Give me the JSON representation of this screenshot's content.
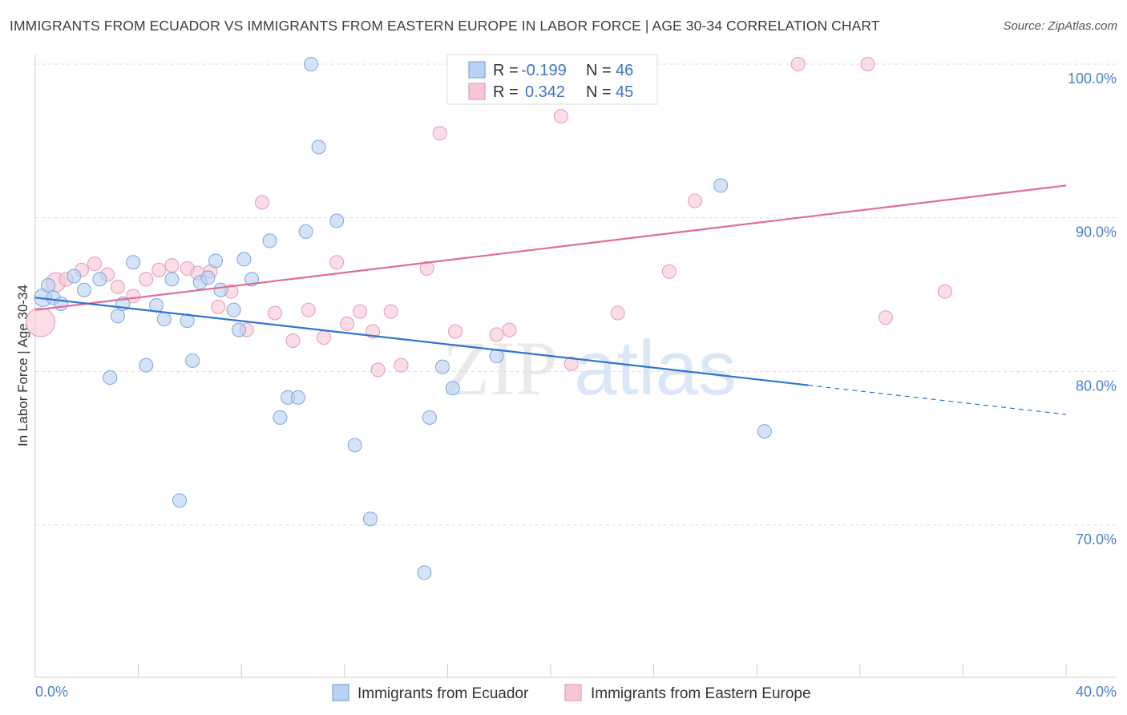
{
  "title": "IMMIGRANTS FROM ECUADOR VS IMMIGRANTS FROM EASTERN EUROPE IN LABOR FORCE | AGE 30-34 CORRELATION CHART",
  "source": "Source: ZipAtlas.com",
  "watermark": {
    "zip": "ZIP",
    "atlas": "atlas"
  },
  "colors": {
    "blue_fill": "#b9d1f2",
    "blue_stroke": "#7aa6e0",
    "blue_line": "#2f74d0",
    "pink_fill": "#f7c6d4",
    "pink_stroke": "#e79ab1",
    "pink_line": "#e06c96",
    "grid": "#dddddd",
    "tick_text": "#4a7fcf"
  },
  "legend": {
    "rows": [
      {
        "r_label": "R =",
        "r_value": "-0.199",
        "n_label": "N =",
        "n_value": "46"
      },
      {
        "r_label": "R =",
        "r_value": "0.342",
        "n_label": "N =",
        "n_value": "45"
      }
    ]
  },
  "chart_data": {
    "type": "scatter",
    "title": "IMMIGRANTS FROM ECUADOR VS IMMIGRANTS FROM EASTERN EUROPE IN LABOR FORCE | AGE 30-34 CORRELATION CHART",
    "xlabel": "",
    "ylabel": "In Labor Force | Age 30-34",
    "xlim": [
      0,
      40
    ],
    "ylim": [
      60,
      103
    ],
    "x_tick_labels": [
      "0.0%",
      "40.0%"
    ],
    "y_ticks": [
      70,
      80,
      90,
      100
    ],
    "y_tick_labels": [
      "70.0%",
      "80.0%",
      "90.0%",
      "100.0%"
    ],
    "grid": true,
    "legend_position": "bottom",
    "series": [
      {
        "name": "Immigrants from Ecuador",
        "color": "#7aa6e0",
        "r": -0.199,
        "n": 46,
        "trend": {
          "x": [
            0,
            30
          ],
          "y": [
            84.8,
            79.1
          ],
          "dashed_to": [
            40,
            77.2
          ]
        },
        "points": [
          [
            0.3,
            84.8
          ],
          [
            0.5,
            85.6
          ],
          [
            0.7,
            84.8
          ],
          [
            1.0,
            84.4
          ],
          [
            1.5,
            86.2
          ],
          [
            1.9,
            85.3
          ],
          [
            2.5,
            86.0
          ],
          [
            2.9,
            79.6
          ],
          [
            3.2,
            83.6
          ],
          [
            3.4,
            84.4
          ],
          [
            3.8,
            87.1
          ],
          [
            4.3,
            80.4
          ],
          [
            4.7,
            84.3
          ],
          [
            5.0,
            83.4
          ],
          [
            5.3,
            86.0
          ],
          [
            5.6,
            71.6
          ],
          [
            5.9,
            83.3
          ],
          [
            6.1,
            80.7
          ],
          [
            6.4,
            85.8
          ],
          [
            6.7,
            86.1
          ],
          [
            7.0,
            87.2
          ],
          [
            7.2,
            85.3
          ],
          [
            7.7,
            84.0
          ],
          [
            7.9,
            82.7
          ],
          [
            8.1,
            87.3
          ],
          [
            8.4,
            86.0
          ],
          [
            9.1,
            88.5
          ],
          [
            9.5,
            77.0
          ],
          [
            9.8,
            78.3
          ],
          [
            10.2,
            78.3
          ],
          [
            10.5,
            89.1
          ],
          [
            10.7,
            100.0
          ],
          [
            11.0,
            94.6
          ],
          [
            11.7,
            89.8
          ],
          [
            12.4,
            75.2
          ],
          [
            13.0,
            70.4
          ],
          [
            15.1,
            66.9
          ],
          [
            15.3,
            77.0
          ],
          [
            15.8,
            80.3
          ],
          [
            16.2,
            78.9
          ],
          [
            17.9,
            81.0
          ],
          [
            26.6,
            92.1
          ],
          [
            28.3,
            76.1
          ]
        ]
      },
      {
        "name": "Immigrants from Eastern Europe",
        "color": "#e79ab1",
        "r": 0.342,
        "n": 45,
        "trend": {
          "x": [
            0,
            40
          ],
          "y": [
            84.0,
            92.1
          ]
        },
        "points": [
          [
            0.2,
            83.2
          ],
          [
            0.8,
            85.8
          ],
          [
            1.2,
            86.0
          ],
          [
            1.8,
            86.6
          ],
          [
            2.3,
            87.0
          ],
          [
            2.8,
            86.3
          ],
          [
            3.2,
            85.5
          ],
          [
            3.8,
            84.9
          ],
          [
            4.3,
            86.0
          ],
          [
            4.8,
            86.6
          ],
          [
            5.3,
            86.9
          ],
          [
            5.9,
            86.7
          ],
          [
            6.3,
            86.4
          ],
          [
            6.8,
            86.5
          ],
          [
            7.1,
            84.2
          ],
          [
            7.6,
            85.2
          ],
          [
            8.2,
            82.7
          ],
          [
            8.8,
            91.0
          ],
          [
            9.3,
            83.8
          ],
          [
            10.0,
            82.0
          ],
          [
            10.6,
            84.0
          ],
          [
            11.2,
            82.2
          ],
          [
            11.7,
            87.1
          ],
          [
            12.1,
            83.1
          ],
          [
            12.6,
            83.9
          ],
          [
            13.1,
            82.6
          ],
          [
            13.3,
            80.1
          ],
          [
            13.8,
            83.9
          ],
          [
            14.2,
            80.4
          ],
          [
            15.2,
            86.7
          ],
          [
            15.7,
            95.5
          ],
          [
            16.3,
            82.6
          ],
          [
            17.9,
            82.4
          ],
          [
            18.4,
            82.7
          ],
          [
            18.9,
            100.0
          ],
          [
            20.4,
            96.6
          ],
          [
            20.8,
            80.5
          ],
          [
            22.6,
            83.8
          ],
          [
            24.6,
            86.5
          ],
          [
            25.6,
            91.1
          ],
          [
            29.6,
            100.0
          ],
          [
            32.3,
            100.0
          ],
          [
            33.0,
            83.5
          ],
          [
            35.3,
            85.2
          ]
        ]
      }
    ]
  },
  "bottom_legend": [
    {
      "label": "Immigrants from Ecuador"
    },
    {
      "label": "Immigrants from Eastern Europe"
    }
  ]
}
